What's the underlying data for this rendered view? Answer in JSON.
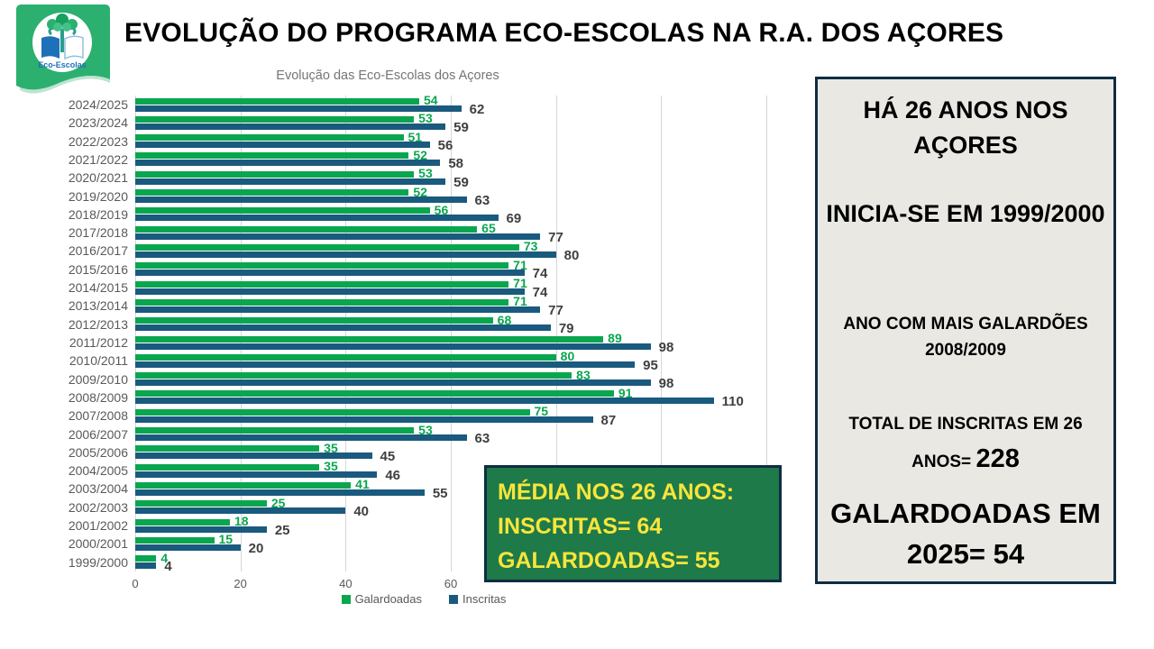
{
  "page": {
    "title": "EVOLUÇÃO DO PROGRAMA ECO-ESCOLAS NA R.A. DOS AÇORES"
  },
  "logo": {
    "label": "Eco-Escolas"
  },
  "chart_data": {
    "type": "bar",
    "orientation": "horizontal",
    "title": "Evolução das Eco-Escolas dos Açores",
    "categories": [
      "2024/2025",
      "2023/2024",
      "2022/2023",
      "2021/2022",
      "2020/2021",
      "2019/2020",
      "2018/2019",
      "2017/2018",
      "2016/2017",
      "2015/2016",
      "2014/2015",
      "2013/2014",
      "2012/2013",
      "2011/2012",
      "2010/2011",
      "2009/2010",
      "2008/2009",
      "2007/2008",
      "2006/2007",
      "2005/2006",
      "2004/2005",
      "2003/2004",
      "2002/2003",
      "2001/2002",
      "2000/2001",
      "1999/2000"
    ],
    "series": [
      {
        "name": "Galardoadas",
        "color": "#0aa64f",
        "values": [
          54,
          53,
          51,
          52,
          53,
          52,
          56,
          65,
          73,
          71,
          71,
          71,
          68,
          89,
          80,
          83,
          91,
          75,
          53,
          35,
          35,
          41,
          25,
          18,
          15,
          4
        ]
      },
      {
        "name": "Inscritas",
        "color": "#1a5a7e",
        "values": [
          62,
          59,
          56,
          58,
          59,
          63,
          69,
          77,
          80,
          74,
          74,
          77,
          79,
          98,
          95,
          98,
          110,
          87,
          63,
          45,
          46,
          55,
          40,
          25,
          20,
          4
        ]
      }
    ],
    "x_ticks": [
      0,
      20,
      40,
      60
    ],
    "xlim": [
      0,
      120
    ],
    "gridlines_every": 20,
    "grid": true,
    "legend_position": "bottom",
    "value_labels": true
  },
  "media_box": {
    "line1": "MÉDIA NOS 26 ANOS:",
    "line2": "INSCRITAS= 64",
    "line3": "GALARDOADAS= 55"
  },
  "info_panel": {
    "block1": "HÁ 26 ANOS NOS AÇORES",
    "block2": "INICIA-SE EM 1999/2000",
    "block3": "ANO COM MAIS GALARDÕES 2008/2009",
    "block4_prefix": "TOTAL DE INSCRITAS EM 26 ANOS= ",
    "block4_value": "228",
    "block5": "GALARDOADAS EM 2025= 54"
  },
  "colors": {
    "galardoadas": "#0aa64f",
    "inscritas": "#1a5a7e",
    "media_box_bg": "#1e7a48",
    "media_box_text": "#f9e53a",
    "panel_bg": "#e9e8e3",
    "panel_border": "#0f2d43"
  }
}
